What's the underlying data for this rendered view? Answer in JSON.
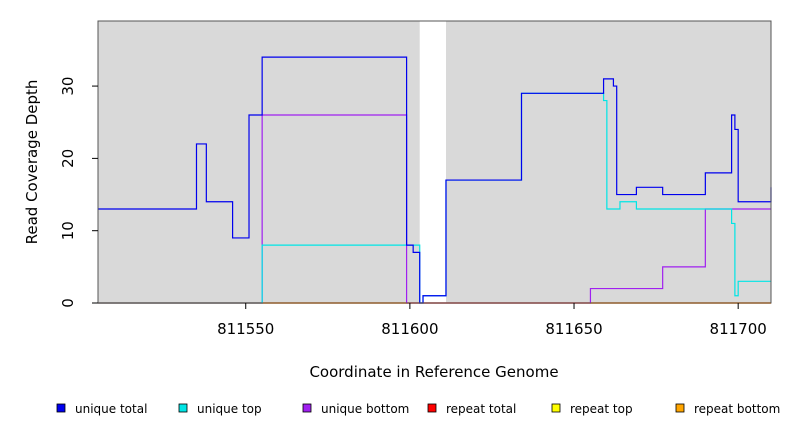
{
  "chart_data": {
    "type": "line",
    "xlabel": "Coordinate in Reference Genome",
    "ylabel": "Read Coverage Depth",
    "xlim": [
      811505,
      811710
    ],
    "ylim": [
      0,
      39
    ],
    "xticks": [
      811550,
      811600,
      811650,
      811700
    ],
    "yticks": [
      0,
      10,
      20,
      30
    ],
    "background": "#d9d9d9",
    "gap_regions": [
      [
        811603,
        811611
      ]
    ],
    "grid": false,
    "legend_position": "bottom",
    "series": [
      {
        "name": "unique total",
        "color": "#0000ee",
        "x": [
          811505,
          811535,
          811538,
          811546,
          811551,
          811555,
          811599,
          811601,
          811603,
          811604,
          811606,
          811611,
          811634,
          811659,
          811662,
          811663,
          811664,
          811669,
          811677,
          811690,
          811698,
          811699,
          811700,
          811710
        ],
        "y": [
          13,
          22,
          14,
          9,
          26,
          34,
          8,
          7,
          0,
          1,
          1,
          17,
          29,
          31,
          30,
          15,
          15,
          16,
          15,
          18,
          26,
          24,
          14,
          16
        ]
      },
      {
        "name": "unique top",
        "color": "#00e5e5",
        "x": [
          811505,
          811555,
          811599,
          811603,
          811604,
          811606,
          811611,
          811634,
          811659,
          811660,
          811664,
          811669,
          811690,
          811698,
          811699,
          811700,
          811710
        ],
        "y": [
          0,
          8,
          8,
          0,
          1,
          1,
          17,
          29,
          28,
          13,
          14,
          13,
          13,
          11,
          1,
          3,
          3
        ]
      },
      {
        "name": "unique bottom",
        "color": "#a020f0",
        "x": [
          811505,
          811555,
          811599,
          811603,
          811611,
          811655,
          811677,
          811690,
          811710
        ],
        "y": [
          0,
          26,
          0,
          0,
          0,
          2,
          5,
          13,
          13
        ]
      },
      {
        "name": "repeat total",
        "color": "#ff0000",
        "x": [
          811505,
          811710
        ],
        "y": [
          0,
          0
        ]
      },
      {
        "name": "repeat top",
        "color": "#ffff00",
        "x": [
          811505,
          811710
        ],
        "y": [
          0,
          0
        ]
      },
      {
        "name": "repeat bottom",
        "color": "#ffa500",
        "x": [
          811505,
          811710
        ],
        "y": [
          0,
          0
        ]
      }
    ]
  }
}
